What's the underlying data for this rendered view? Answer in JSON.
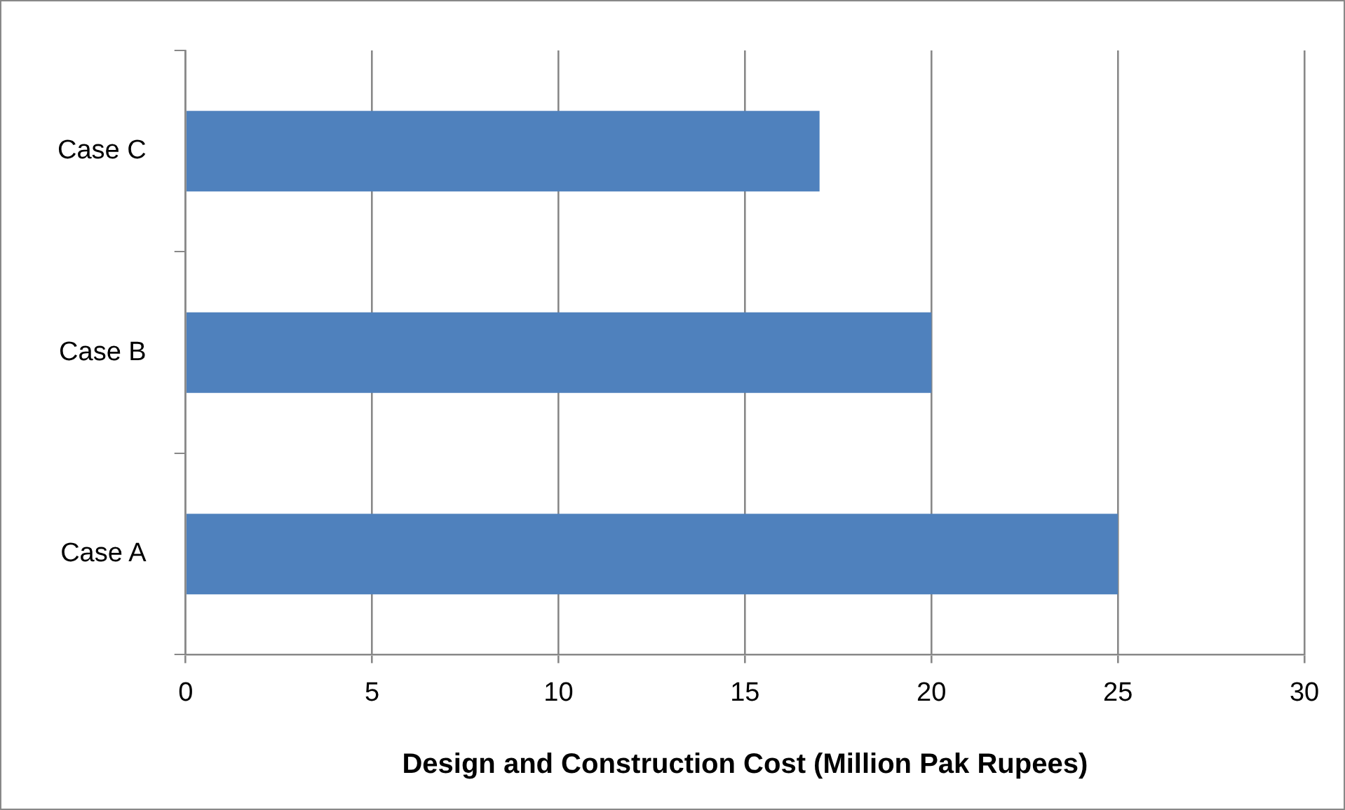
{
  "chart_data": {
    "type": "bar",
    "orientation": "horizontal",
    "xlabel": "Design and Construction Cost (Million Pak Rupees)",
    "categories": [
      "Case C",
      "Case B",
      "Case A"
    ],
    "values": [
      17,
      20,
      25
    ],
    "color": "#4f81bd",
    "xlim": [
      0,
      30
    ],
    "xticks": [
      0,
      5,
      10,
      15,
      20,
      25,
      30
    ],
    "grid": "x",
    "legend": false
  }
}
